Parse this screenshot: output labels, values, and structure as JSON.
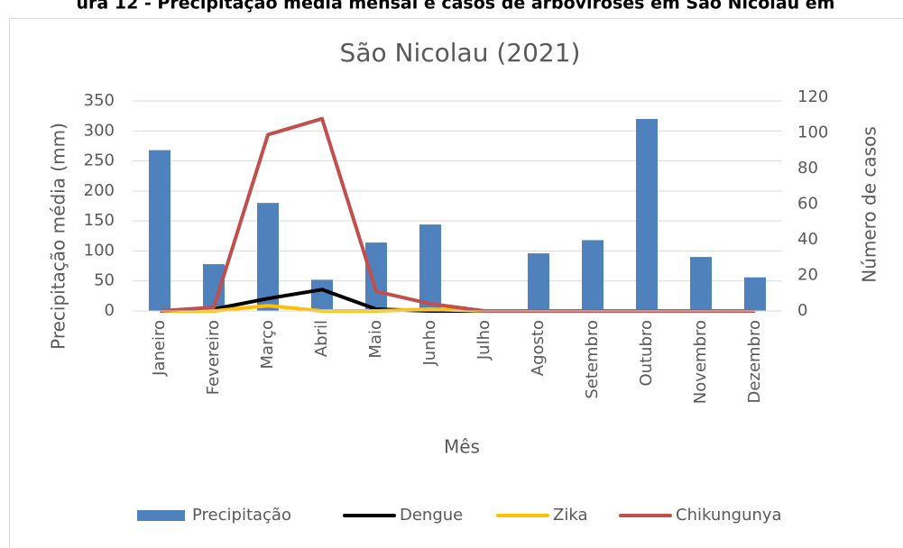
{
  "chart_data": {
    "type": "bar_line",
    "caption": "ura 12 - Precipitação média mensal e casos de arboviroses em São Nicolau em",
    "title": "São Nicolau (2021)",
    "x_label": "Mês",
    "y_label": "Precipitação média (mm)",
    "y2_label": "Número de casos",
    "categories": [
      "Janeiro",
      "Fevereiro",
      "Março",
      "Abril",
      "Maio",
      "Junho",
      "Julho",
      "Agosto",
      "Setembro",
      "Outubro",
      "Novembro",
      "Dezembro"
    ],
    "series": [
      {
        "name": "Precipitação",
        "color": "#4f81bd",
        "kind": "bar",
        "values": [
          268,
          78,
          180,
          52,
          114,
          144,
          0,
          96,
          118,
          320,
          90,
          56
        ]
      },
      {
        "name": "Dengue",
        "color": "#000000",
        "kind": "line",
        "axis": "y2",
        "values": [
          0,
          1,
          7,
          12,
          1,
          0,
          0,
          0,
          0,
          0,
          0,
          0
        ]
      },
      {
        "name": "Zika",
        "color": "#ffc000",
        "kind": "line",
        "axis": "y2",
        "values": [
          0,
          0,
          3,
          0,
          0,
          1,
          0,
          0,
          0,
          0,
          0,
          0
        ]
      },
      {
        "name": "Chikungunya",
        "color": "#c0504d",
        "kind": "line",
        "axis": "y2",
        "values": [
          0,
          2,
          99,
          108,
          11,
          4,
          0,
          0,
          0,
          0,
          0,
          0
        ]
      }
    ],
    "ylim": [
      0,
      350
    ],
    "yticks": [
      0,
      50,
      100,
      150,
      200,
      250,
      300,
      350
    ],
    "y2lim": [
      0,
      120
    ],
    "y2ticks": [
      0,
      20,
      40,
      60,
      80,
      100,
      120
    ],
    "grid": true,
    "legend": "bottom"
  }
}
